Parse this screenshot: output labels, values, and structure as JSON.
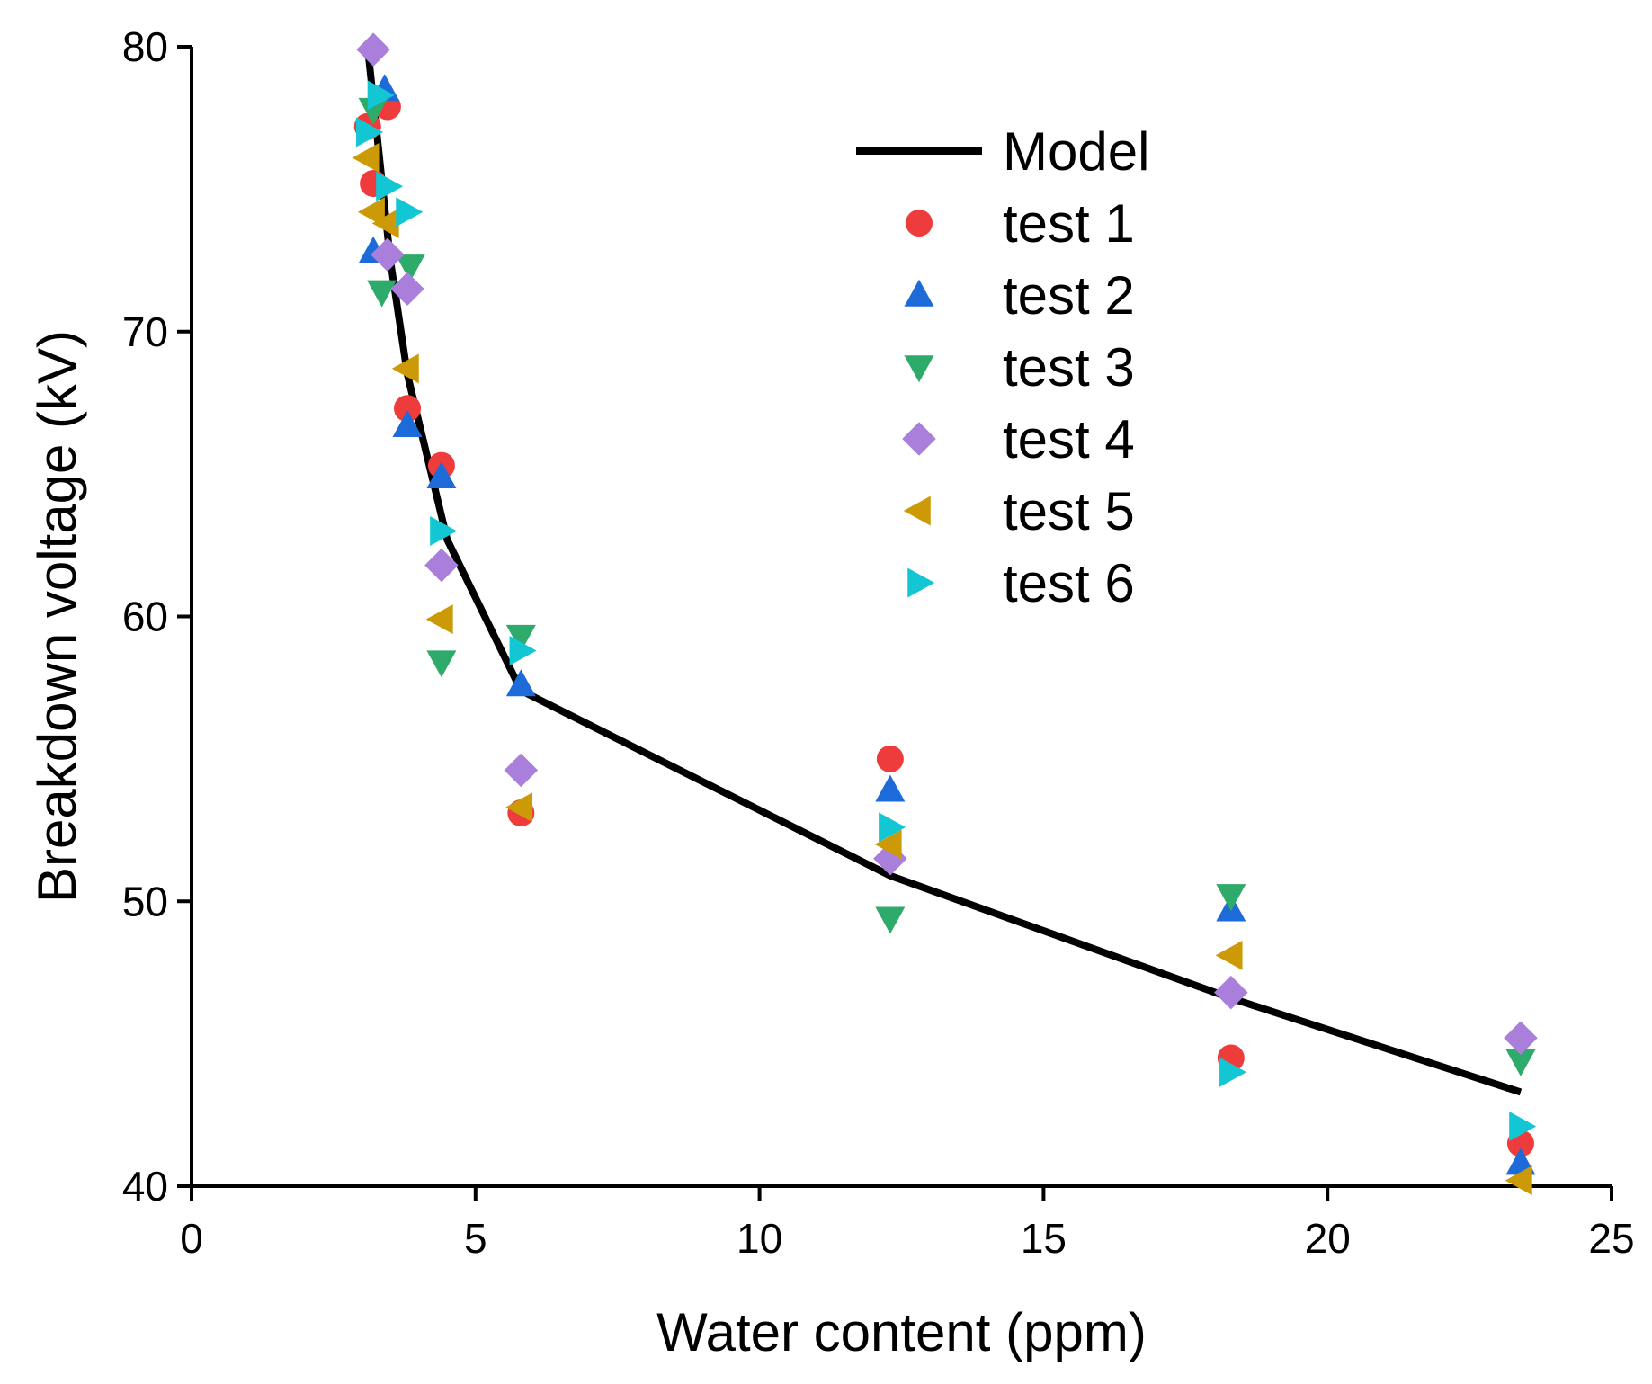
{
  "chart_data": {
    "type": "scatter",
    "title": "",
    "xlabel": "Water content (ppm)",
    "ylabel": "Breakdown voltage (kV)",
    "xlim": [
      0,
      25
    ],
    "ylim": [
      40,
      80
    ],
    "xticks": [
      "0",
      "5",
      "10",
      "15",
      "20",
      "25"
    ],
    "yticks": [
      "40",
      "50",
      "60",
      "70",
      "80"
    ],
    "grid": false,
    "legend_position": "top-right",
    "model": {
      "name": "Model",
      "color": "#000000",
      "x": [
        3.1,
        3.5,
        3.8,
        4.5,
        5.8,
        12.3,
        18.3,
        23.4
      ],
      "y": [
        80.0,
        72.5,
        68.5,
        62.7,
        57.4,
        50.9,
        46.6,
        43.3
      ]
    },
    "series": [
      {
        "name": "test 1",
        "marker": "circle",
        "color": "#EE3B3B",
        "x": [
          3.1,
          3.2,
          3.45,
          3.8,
          4.4,
          5.8,
          12.3,
          18.3,
          23.4
        ],
        "y": [
          77.2,
          75.2,
          77.9,
          67.3,
          65.3,
          53.1,
          55.0,
          44.5,
          41.5
        ]
      },
      {
        "name": "test 2",
        "marker": "triangle-up",
        "color": "#1C6BD9",
        "x": [
          3.2,
          3.4,
          3.8,
          4.4,
          5.8,
          12.3,
          18.3,
          23.4
        ],
        "y": [
          72.8,
          78.5,
          66.7,
          64.9,
          57.6,
          53.9,
          49.7,
          40.8
        ]
      },
      {
        "name": "test 3",
        "marker": "triangle-down",
        "color": "#2EAA6A",
        "x": [
          3.2,
          3.35,
          3.85,
          4.4,
          5.8,
          12.3,
          18.3,
          23.4
        ],
        "y": [
          77.8,
          71.4,
          72.3,
          58.4,
          59.3,
          49.4,
          50.2,
          44.4
        ]
      },
      {
        "name": "test 4",
        "marker": "diamond",
        "color": "#A97FDB",
        "x": [
          3.2,
          3.45,
          3.8,
          4.4,
          5.8,
          12.3,
          18.3,
          23.4
        ],
        "y": [
          79.9,
          72.7,
          71.5,
          61.8,
          54.6,
          51.5,
          46.8,
          45.2
        ]
      },
      {
        "name": "test 5",
        "marker": "triangle-left",
        "color": "#CC9A06",
        "x": [
          3.1,
          3.2,
          3.45,
          3.8,
          4.4,
          5.8,
          12.3,
          18.3,
          23.4
        ],
        "y": [
          76.1,
          74.2,
          73.8,
          68.7,
          59.9,
          53.3,
          52.0,
          48.1,
          40.2
        ]
      },
      {
        "name": "test 6",
        "marker": "triangle-right",
        "color": "#13C6D3",
        "x": [
          3.1,
          3.3,
          3.45,
          3.8,
          4.4,
          5.8,
          12.3,
          18.3,
          23.4
        ],
        "y": [
          77.0,
          78.3,
          75.1,
          74.2,
          63.0,
          58.8,
          52.6,
          44.0,
          42.1
        ]
      }
    ]
  }
}
